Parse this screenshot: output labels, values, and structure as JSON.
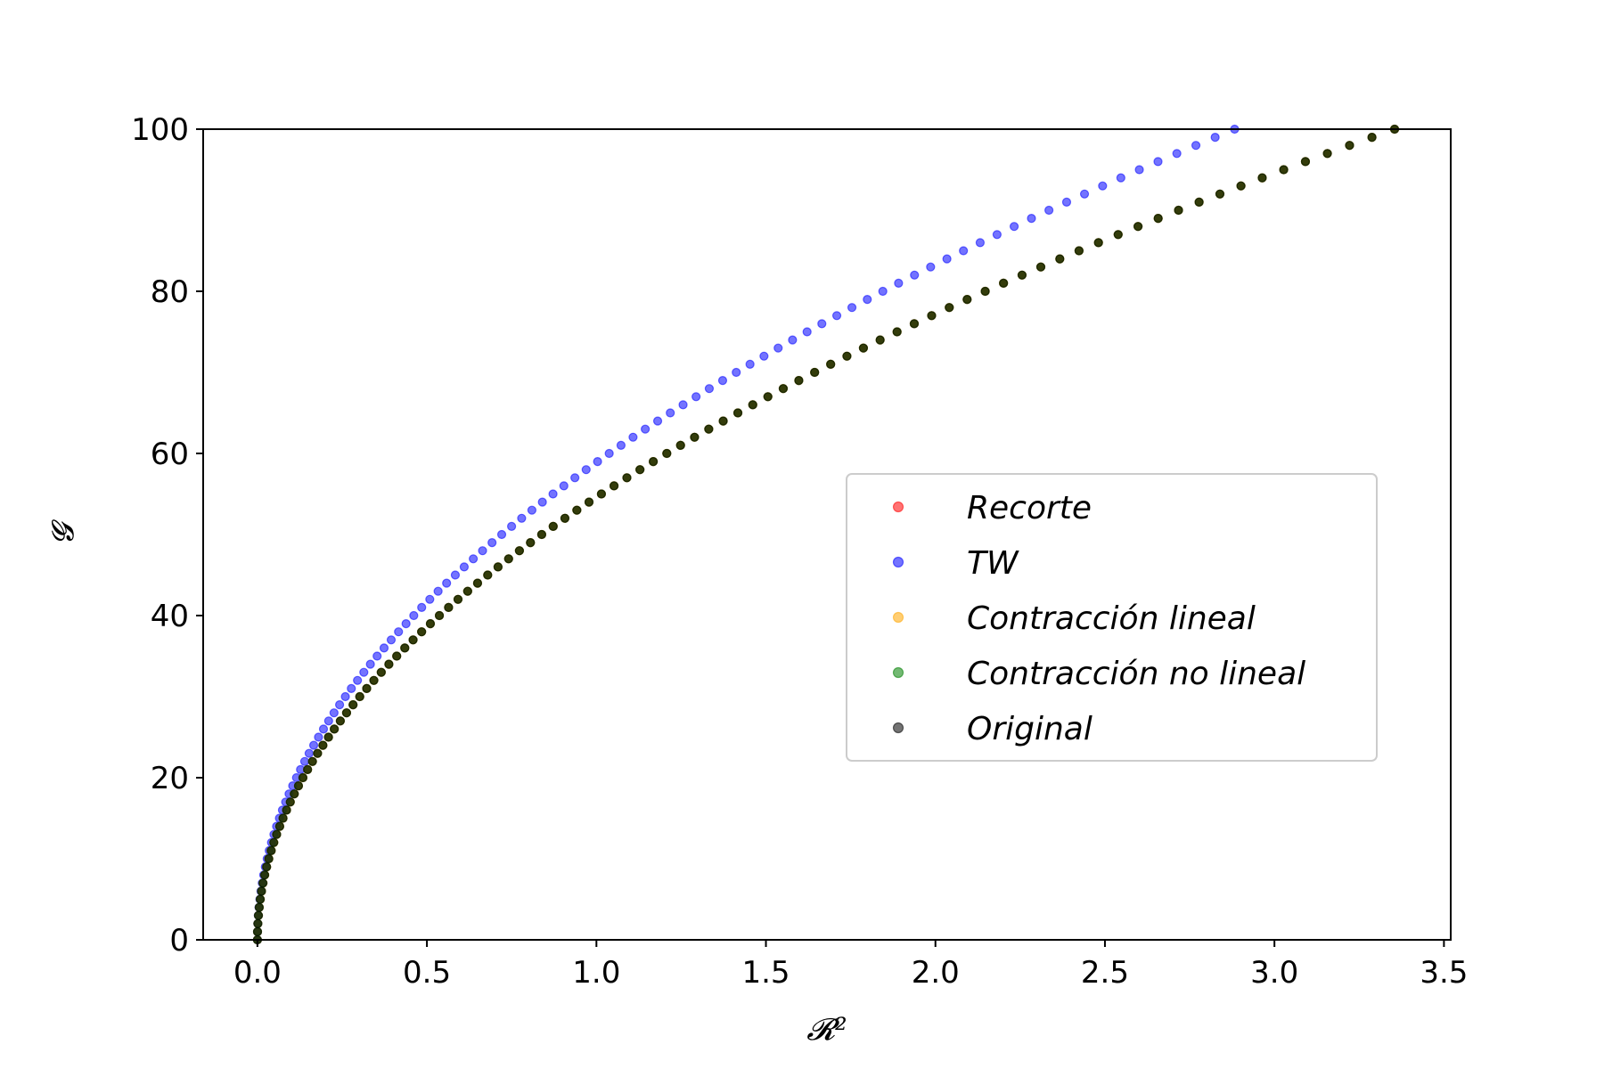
{
  "chart_data": {
    "type": "scatter",
    "title": "",
    "xlabel": "𝓡²",
    "ylabel": "𝓖",
    "xlim": [
      -0.16,
      3.52
    ],
    "ylim": [
      0,
      100
    ],
    "xticks": [
      0.0,
      0.5,
      1.0,
      1.5,
      2.0,
      2.5,
      3.0,
      3.5
    ],
    "xtick_labels": [
      "0.0",
      "0.5",
      "1.0",
      "1.5",
      "2.0",
      "2.5",
      "3.0",
      "3.5"
    ],
    "yticks": [
      0,
      20,
      40,
      60,
      80,
      100
    ],
    "ytick_labels": [
      "0",
      "20",
      "40",
      "60",
      "80",
      "100"
    ],
    "grid": false,
    "legend_position": "center-right",
    "series": [
      {
        "name": "Recorte",
        "color": "#ff0000",
        "alpha": 0.55,
        "model": "G = 54.6 * sqrt(x), x = (G/54.6)^2",
        "g_max": 100,
        "n_points": 100
      },
      {
        "name": "TW",
        "color": "#0000ff",
        "alpha": 0.55,
        "model": "G = 58.9 * sqrt(x), x = (G/58.9)^2",
        "g_max": 100,
        "n_points": 100
      },
      {
        "name": "Contracción lineal",
        "color": "#ffa500",
        "alpha": 0.55,
        "model": "G = 54.6 * sqrt(x), x = (G/54.6)^2",
        "g_max": 100,
        "n_points": 100
      },
      {
        "name": "Contracción no lineal",
        "color": "#008000",
        "alpha": 0.55,
        "model": "G = 54.6 * sqrt(x), x = (G/54.6)^2",
        "g_max": 100,
        "n_points": 100
      },
      {
        "name": "Original",
        "color": "#000000",
        "alpha": 0.55,
        "model": "G = 54.6 * sqrt(x), x = (G/54.6)^2",
        "g_max": 100,
        "n_points": 100
      }
    ],
    "series_coeffs": [
      54.6,
      58.9,
      54.6,
      54.6,
      54.6
    ]
  }
}
